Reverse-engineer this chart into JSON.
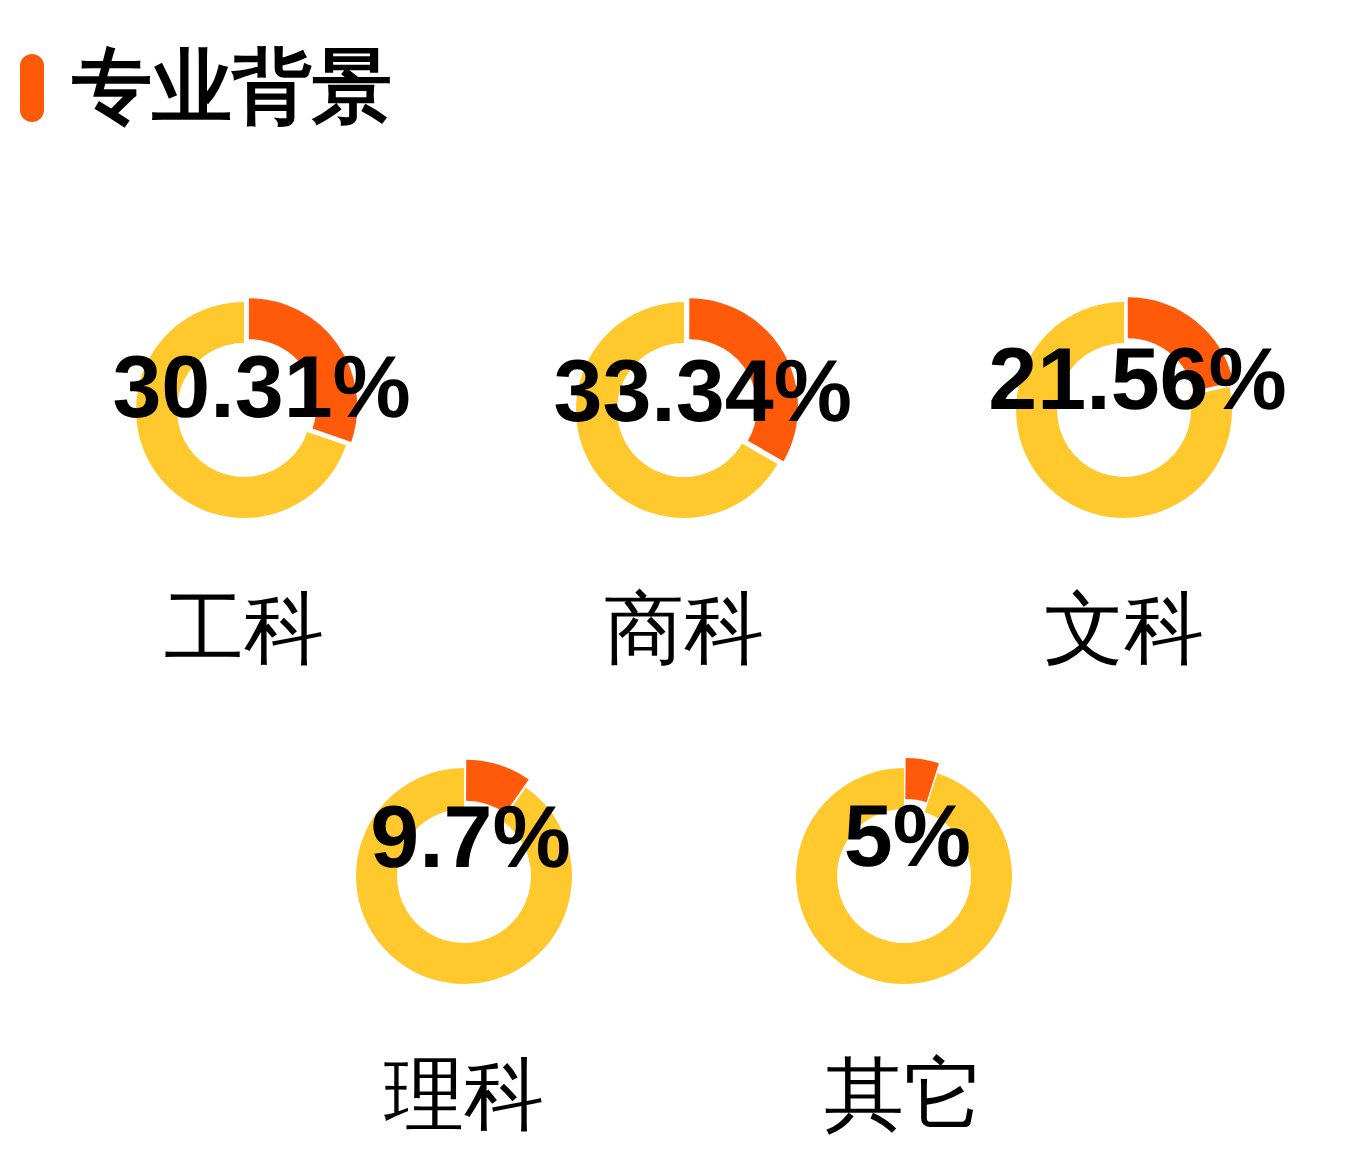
{
  "chart_data": [
    {
      "type": "other",
      "title": "专业背景"
    },
    {
      "type": "donut",
      "title": "工科",
      "categories": [
        null,
        null
      ],
      "values": [
        30.31,
        69.69
      ],
      "colors": [
        "#ff5a0a",
        "#ffc92e"
      ],
      "value_labels": [
        "30.31%",
        null
      ]
    },
    {
      "type": "donut",
      "title": "商科",
      "categories": [
        null,
        null
      ],
      "values": [
        33.34,
        66.66
      ],
      "colors": [
        "#ff5a0a",
        "#ffc92e"
      ],
      "value_labels": [
        "33.34%",
        null
      ]
    },
    {
      "type": "donut",
      "title": "文科",
      "categories": [
        null,
        null
      ],
      "values": [
        21.56,
        78.44
      ],
      "colors": [
        "#ff5a0a",
        "#ffc92e"
      ],
      "value_labels": [
        "21.56%",
        null
      ]
    },
    {
      "type": "donut",
      "title": "理科",
      "categories": [
        null,
        null
      ],
      "values": [
        9.7,
        90.3
      ],
      "colors": [
        "#ff5a0a",
        "#ffc92e"
      ],
      "value_labels": [
        "9.7%",
        null
      ]
    },
    {
      "type": "donut",
      "title": "其它",
      "categories": [
        null,
        null
      ],
      "values": [
        5,
        95
      ],
      "colors": [
        "#ff5a0a",
        "#ffc92e"
      ],
      "value_labels": [
        "5%",
        null
      ]
    }
  ]
}
